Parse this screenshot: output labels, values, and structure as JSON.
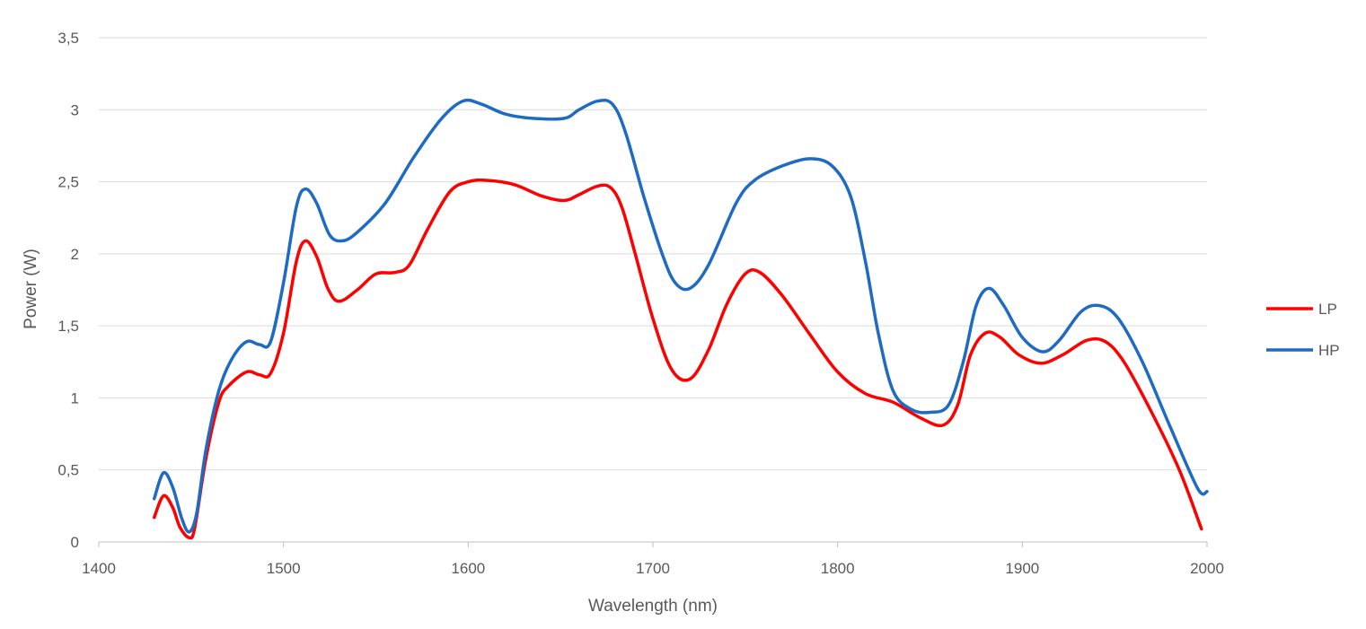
{
  "chart_data": {
    "type": "line",
    "title": "",
    "xlabel": "Wavelength (nm)",
    "ylabel": "Power (W)",
    "xlim": [
      1400,
      2000
    ],
    "ylim": [
      0,
      3.5
    ],
    "x_ticks": [
      1400,
      1500,
      1600,
      1700,
      1800,
      1900,
      2000
    ],
    "x_tick_labels": [
      "1400",
      "1500",
      "1600",
      "1700",
      "1800",
      "1900",
      "2000"
    ],
    "y_ticks": [
      0,
      0.5,
      1,
      1.5,
      2,
      2.5,
      3,
      3.5
    ],
    "y_tick_labels": [
      "0",
      "0,5",
      "1",
      "1,5",
      "2",
      "2,5",
      "3",
      "3,5"
    ],
    "grid": "horizontal",
    "legend_position": "right",
    "smooth": true,
    "series": [
      {
        "name": "LP",
        "color": "#ff0000",
        "points": [
          [
            1430,
            0.17
          ],
          [
            1435,
            0.32
          ],
          [
            1440,
            0.24
          ],
          [
            1444,
            0.1
          ],
          [
            1449,
            0.03
          ],
          [
            1452,
            0.1
          ],
          [
            1458,
            0.58
          ],
          [
            1465,
            0.97
          ],
          [
            1470,
            1.08
          ],
          [
            1480,
            1.18
          ],
          [
            1487,
            1.16
          ],
          [
            1493,
            1.17
          ],
          [
            1500,
            1.45
          ],
          [
            1507,
            1.95
          ],
          [
            1512,
            2.09
          ],
          [
            1518,
            1.98
          ],
          [
            1524,
            1.76
          ],
          [
            1530,
            1.67
          ],
          [
            1540,
            1.75
          ],
          [
            1550,
            1.86
          ],
          [
            1560,
            1.87
          ],
          [
            1568,
            1.92
          ],
          [
            1578,
            2.17
          ],
          [
            1590,
            2.43
          ],
          [
            1600,
            2.5
          ],
          [
            1610,
            2.51
          ],
          [
            1625,
            2.48
          ],
          [
            1640,
            2.4
          ],
          [
            1652,
            2.37
          ],
          [
            1660,
            2.41
          ],
          [
            1670,
            2.47
          ],
          [
            1677,
            2.46
          ],
          [
            1683,
            2.33
          ],
          [
            1690,
            2.02
          ],
          [
            1700,
            1.55
          ],
          [
            1710,
            1.2
          ],
          [
            1720,
            1.13
          ],
          [
            1730,
            1.33
          ],
          [
            1740,
            1.65
          ],
          [
            1750,
            1.86
          ],
          [
            1758,
            1.87
          ],
          [
            1770,
            1.71
          ],
          [
            1785,
            1.44
          ],
          [
            1800,
            1.18
          ],
          [
            1815,
            1.03
          ],
          [
            1830,
            0.97
          ],
          [
            1845,
            0.86
          ],
          [
            1857,
            0.81
          ],
          [
            1865,
            0.95
          ],
          [
            1872,
            1.3
          ],
          [
            1880,
            1.45
          ],
          [
            1888,
            1.42
          ],
          [
            1898,
            1.3
          ],
          [
            1910,
            1.24
          ],
          [
            1922,
            1.3
          ],
          [
            1935,
            1.4
          ],
          [
            1945,
            1.39
          ],
          [
            1955,
            1.25
          ],
          [
            1970,
            0.9
          ],
          [
            1985,
            0.5
          ],
          [
            1997,
            0.09
          ]
        ]
      },
      {
        "name": "HP",
        "color": "#1f6bc4",
        "points": [
          [
            1430,
            0.3
          ],
          [
            1435,
            0.48
          ],
          [
            1440,
            0.38
          ],
          [
            1445,
            0.16
          ],
          [
            1449,
            0.07
          ],
          [
            1453,
            0.2
          ],
          [
            1458,
            0.64
          ],
          [
            1465,
            1.05
          ],
          [
            1472,
            1.27
          ],
          [
            1480,
            1.39
          ],
          [
            1487,
            1.37
          ],
          [
            1493,
            1.39
          ],
          [
            1500,
            1.8
          ],
          [
            1507,
            2.33
          ],
          [
            1512,
            2.45
          ],
          [
            1518,
            2.35
          ],
          [
            1525,
            2.13
          ],
          [
            1532,
            2.09
          ],
          [
            1540,
            2.15
          ],
          [
            1555,
            2.35
          ],
          [
            1570,
            2.66
          ],
          [
            1585,
            2.93
          ],
          [
            1597,
            3.06
          ],
          [
            1607,
            3.04
          ],
          [
            1620,
            2.97
          ],
          [
            1635,
            2.94
          ],
          [
            1652,
            2.94
          ],
          [
            1660,
            3.0
          ],
          [
            1670,
            3.06
          ],
          [
            1678,
            3.04
          ],
          [
            1685,
            2.85
          ],
          [
            1695,
            2.4
          ],
          [
            1705,
            2.0
          ],
          [
            1712,
            1.8
          ],
          [
            1720,
            1.76
          ],
          [
            1730,
            1.92
          ],
          [
            1745,
            2.35
          ],
          [
            1755,
            2.51
          ],
          [
            1770,
            2.61
          ],
          [
            1785,
            2.66
          ],
          [
            1797,
            2.61
          ],
          [
            1807,
            2.4
          ],
          [
            1815,
            1.95
          ],
          [
            1822,
            1.45
          ],
          [
            1830,
            1.05
          ],
          [
            1840,
            0.92
          ],
          [
            1850,
            0.9
          ],
          [
            1860,
            0.95
          ],
          [
            1868,
            1.25
          ],
          [
            1875,
            1.64
          ],
          [
            1882,
            1.76
          ],
          [
            1890,
            1.64
          ],
          [
            1900,
            1.42
          ],
          [
            1911,
            1.32
          ],
          [
            1920,
            1.4
          ],
          [
            1932,
            1.6
          ],
          [
            1942,
            1.64
          ],
          [
            1952,
            1.55
          ],
          [
            1965,
            1.25
          ],
          [
            1980,
            0.8
          ],
          [
            1995,
            0.37
          ],
          [
            2000,
            0.35
          ]
        ]
      }
    ]
  }
}
